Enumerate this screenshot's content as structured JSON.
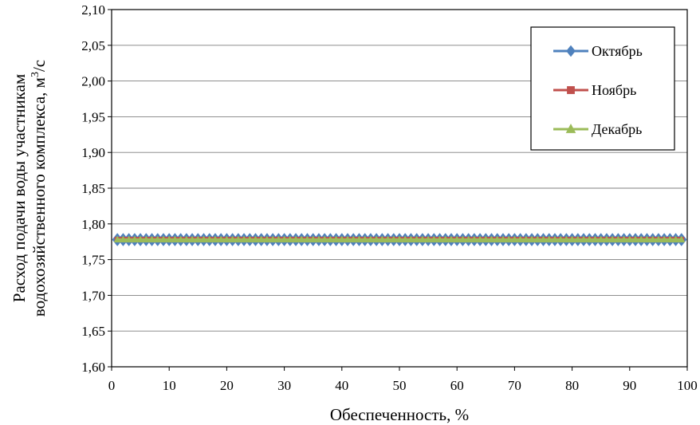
{
  "chart_data": {
    "type": "line",
    "title": "",
    "xlabel": "Обеспеченность, %",
    "ylabel_line1": "Расход подачи воды участникам",
    "ylabel_line2": "водохозяйственного комплекса, м",
    "ylabel_sup": "3",
    "ylabel_tail": "/с",
    "xlim": [
      0,
      100
    ],
    "ylim": [
      1.6,
      2.1
    ],
    "x_ticks": [
      "0",
      "10",
      "20",
      "30",
      "40",
      "50",
      "60",
      "70",
      "80",
      "90",
      "100"
    ],
    "y_ticks": [
      "1,60",
      "1,65",
      "1,70",
      "1,75",
      "1,80",
      "1,85",
      "1,90",
      "1,95",
      "2,00",
      "2,05",
      "2,10"
    ],
    "grid": "horizontal",
    "legend_position": "top-right",
    "x_start": 1,
    "x_end": 99,
    "x_step": 1,
    "series": [
      {
        "name": "Октябрь",
        "value": 1.778,
        "color": "#4F81BD",
        "marker": "diamond"
      },
      {
        "name": "Ноябрь",
        "value": 1.778,
        "color": "#C0504D",
        "marker": "square"
      },
      {
        "name": "Декабрь",
        "value": 1.778,
        "color": "#9BBB59",
        "marker": "triangle"
      }
    ]
  }
}
